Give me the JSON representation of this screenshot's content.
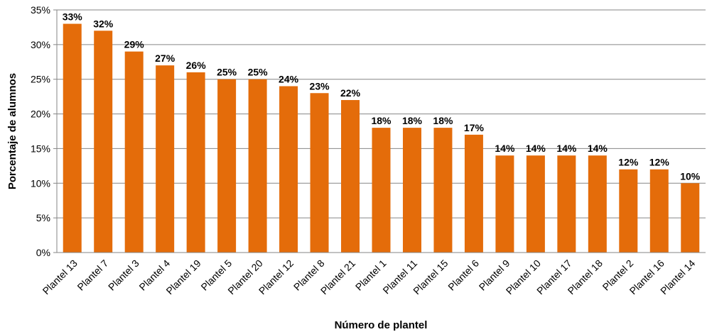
{
  "chart_data": {
    "type": "bar",
    "title": "",
    "xlabel": "Número de plantel",
    "ylabel": "Porcentaje de alumnos",
    "categories": [
      "Plantel 13",
      "Plantel 7",
      "Plantel 3",
      "Plantel 4",
      "Plantel 19",
      "Plantel 5",
      "Plantel 20",
      "Plantel 12",
      "Plantel 8",
      "Plantel 21",
      "Plantel 1",
      "Plantel 11",
      "Plantel 15",
      "Plantel 6",
      "Plantel 9",
      "Plantel 10",
      "Plantel 17",
      "Plantel 18",
      "Plantel 2",
      "Plantel 16",
      "Plantel 14"
    ],
    "values": [
      33,
      32,
      29,
      27,
      26,
      25,
      25,
      24,
      23,
      22,
      18,
      18,
      18,
      17,
      14,
      14,
      14,
      14,
      12,
      12,
      10
    ],
    "data_labels": [
      "33%",
      "32%",
      "29%",
      "27%",
      "26%",
      "25%",
      "25%",
      "24%",
      "23%",
      "22%",
      "18%",
      "18%",
      "18%",
      "17%",
      "14%",
      "14%",
      "14%",
      "14%",
      "12%",
      "12%",
      "10%"
    ],
    "yticks": [
      0,
      5,
      10,
      15,
      20,
      25,
      30,
      35
    ],
    "ytick_labels": [
      "0%",
      "5%",
      "10%",
      "15%",
      "20%",
      "25%",
      "30%",
      "35%"
    ],
    "ylim": [
      0,
      35
    ],
    "grid": true,
    "legend": "none",
    "colors": {
      "bar": "#E46C0A",
      "grid": "#868686",
      "axis": "#868686"
    }
  }
}
